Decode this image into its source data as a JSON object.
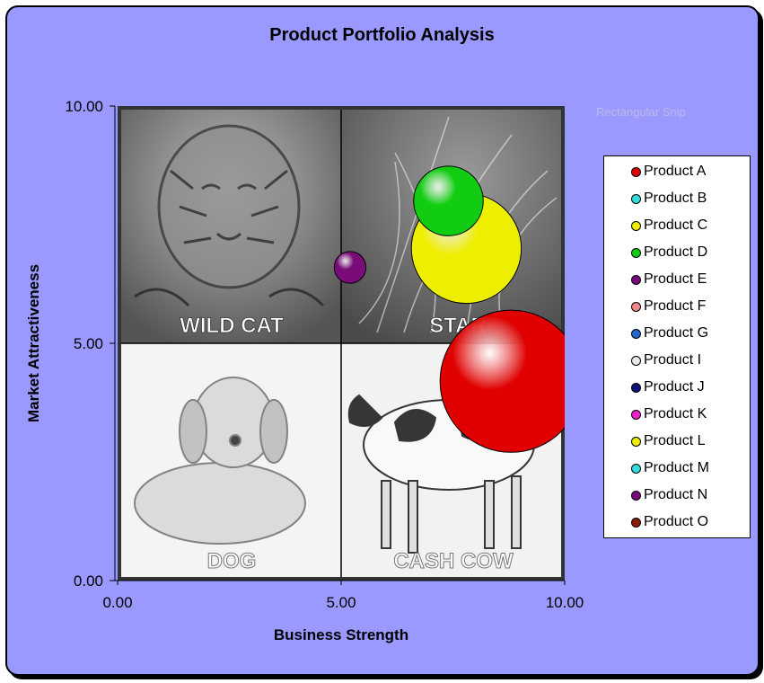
{
  "chart_data": {
    "type": "scatter",
    "variant": "bubble",
    "title": "Product Portfolio Analysis",
    "xlabel": "Business Strength",
    "ylabel": "Market Attractiveness",
    "xlim": [
      0,
      10
    ],
    "ylim": [
      0,
      10
    ],
    "x_ticks": [
      "0.00",
      "5.00",
      "10.00"
    ],
    "y_ticks": [
      "0.00",
      "5.00",
      "10.00"
    ],
    "grid": false,
    "legend_position": "right",
    "quadrants": [
      {
        "label": "WILD CAT",
        "position": "top-left",
        "image": "tiger"
      },
      {
        "label": "STAR",
        "position": "top-right",
        "image": "fireworks"
      },
      {
        "label": "DOG",
        "position": "bottom-left",
        "image": "dog"
      },
      {
        "label": "CASH COW",
        "position": "bottom-right",
        "image": "cow"
      }
    ],
    "series": [
      {
        "name": "Product A",
        "color": "#e00000",
        "points": [
          {
            "x": 8.8,
            "y": 4.2,
            "size": 10
          }
        ]
      },
      {
        "name": "Product B",
        "color": "#33dddd",
        "points": []
      },
      {
        "name": "Product C",
        "color": "#eeee00",
        "points": [
          {
            "x": 7.8,
            "y": 7.0,
            "size": 6
          }
        ]
      },
      {
        "name": "Product D",
        "color": "#11cc11",
        "points": [
          {
            "x": 7.4,
            "y": 8.0,
            "size": 2.4
          }
        ]
      },
      {
        "name": "Product E",
        "color": "#7a0c7a",
        "points": [
          {
            "x": 5.2,
            "y": 6.6,
            "size": 0.5
          }
        ]
      },
      {
        "name": "Product F",
        "color": "#f08888",
        "points": []
      },
      {
        "name": "Product G",
        "color": "#2266cc",
        "points": []
      },
      {
        "name": "Product I",
        "color": "#e8e8e8",
        "points": []
      },
      {
        "name": "Product J",
        "color": "#111177",
        "points": []
      },
      {
        "name": "Product K",
        "color": "#ee22cc",
        "points": []
      },
      {
        "name": "Product L",
        "color": "#eeee00",
        "points": []
      },
      {
        "name": "Product M",
        "color": "#33dddd",
        "points": []
      },
      {
        "name": "Product N",
        "color": "#7a0c7a",
        "points": []
      },
      {
        "name": "Product O",
        "color": "#8b1a0a",
        "points": []
      }
    ],
    "note_text": "Rectangular Snip"
  }
}
